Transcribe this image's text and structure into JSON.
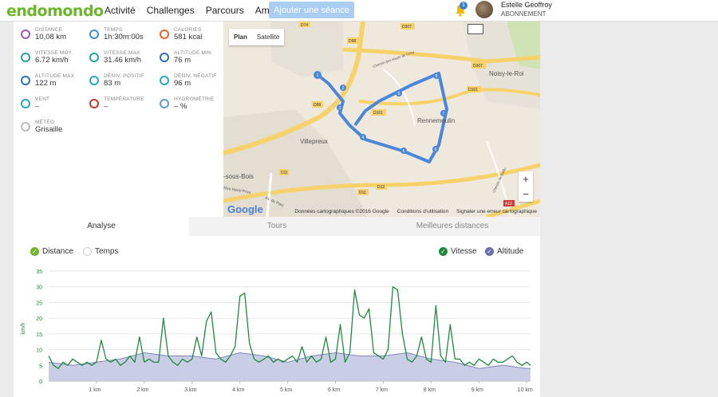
{
  "header": {
    "logo": "endomondo",
    "nav": [
      "Activité",
      "Challenges",
      "Parcours",
      "Amis"
    ],
    "add_button": "Ajouter une séance",
    "notifications": "1",
    "user_name": "Estelle Geoffroy",
    "user_sub": "ABONNEMENT"
  },
  "stats": [
    {
      "label": "Distance",
      "value": "10,08 km",
      "icon": "pin-icon",
      "color": "#9b59b6"
    },
    {
      "label": "Temps",
      "value": "1h:30m:00s",
      "icon": "stopwatch-icon",
      "color": "#3b8fd4"
    },
    {
      "label": "Calories",
      "value": "581 kcal",
      "icon": "flame-icon",
      "color": "#e8642c"
    },
    {
      "label": "Vitesse moy.",
      "value": "6.72 km/h",
      "icon": "gauge-icon",
      "color": "#2aa198"
    },
    {
      "label": "Vitesse max",
      "value": "31.46 km/h",
      "icon": "gauge-icon",
      "color": "#2aa198"
    },
    {
      "label": "Altitude min",
      "value": "76 m",
      "icon": "mountain-icon",
      "color": "#2f6fb8"
    },
    {
      "label": "Altitude max",
      "value": "122 m",
      "icon": "mountain-icon",
      "color": "#2f6fb8"
    },
    {
      "label": "Déniv. positif",
      "value": "83 m",
      "icon": "ascent-icon",
      "color": "#27a8c6"
    },
    {
      "label": "Déniv. négatif",
      "value": "96 m",
      "icon": "descent-icon",
      "color": "#27a8c6"
    },
    {
      "label": "Vent",
      "value": "–",
      "icon": "wind-icon",
      "color": "#27a8c6"
    },
    {
      "label": "Température",
      "value": "–",
      "icon": "thermometer-icon",
      "color": "#c0392b"
    },
    {
      "label": "Hygrométrie",
      "value": "– %",
      "icon": "droplets-icon",
      "color": "#5b9bd5"
    },
    {
      "label": "Météo",
      "value": "Grisaille",
      "icon": "cloud-icon",
      "color": "#bbbbbb"
    }
  ],
  "map": {
    "plan": "Plan",
    "satellite": "Satellite",
    "places": [
      "Villepreux",
      "Rennemoulin",
      "Noisy-le-Roi",
      "-sous-Bois",
      "Chemin des Hauts de Grisy",
      "Chemin de Bailly",
      "Rue Henri Prou",
      "Av. du Parc"
    ],
    "roads": [
      "D98",
      "D307",
      "D161",
      "D11",
      "D12",
      "D74",
      "A12",
      "D307",
      "D161",
      "D98",
      "D11"
    ],
    "attribution": [
      "Données cartographiques ©2016 Google",
      "Conditions d'utilisation",
      "Signaler une erreur cartographique"
    ],
    "google": "Google",
    "zoom_in": "+",
    "zoom_out": "−",
    "markers": [
      "1",
      "2",
      "3",
      "4",
      "5",
      "6",
      "7",
      "8",
      "9"
    ]
  },
  "tabs": [
    "Analyse",
    "Tours",
    "Meilleures distances"
  ],
  "legend": {
    "distance": "Distance",
    "temps": "Temps",
    "vitesse": "Vitesse",
    "altitude": "Altitude",
    "check": "✓"
  },
  "colors": {
    "speed": "#1e8a3c",
    "altitude_fill": "#c9cde6",
    "altitude_line": "#7d86bd",
    "route": "#4a86d9",
    "accent": "#6cb52d"
  },
  "chart_data": {
    "type": "line",
    "ylabel": "km/h",
    "ylim": [
      0,
      35
    ],
    "yticks": [
      0,
      5,
      10,
      15,
      20,
      25,
      30,
      35
    ],
    "xlim": [
      0,
      10.08
    ],
    "xticks": [
      "1 km",
      "2 km",
      "3 km",
      "4 km",
      "5 km",
      "6 km",
      "7 km",
      "8 km",
      "9 km",
      "10 km"
    ],
    "xtick_values": [
      1,
      2,
      3,
      4,
      5,
      6,
      7,
      8,
      9,
      10
    ],
    "series": [
      {
        "name": "Vitesse",
        "x": [
          0,
          0.1,
          0.2,
          0.3,
          0.4,
          0.5,
          0.6,
          0.7,
          0.8,
          0.9,
          1.0,
          1.1,
          1.2,
          1.3,
          1.4,
          1.5,
          1.6,
          1.7,
          1.8,
          1.9,
          2.0,
          2.1,
          2.2,
          2.3,
          2.4,
          2.5,
          2.6,
          2.7,
          2.8,
          2.9,
          3.0,
          3.1,
          3.2,
          3.3,
          3.4,
          3.5,
          3.6,
          3.7,
          3.8,
          3.9,
          4.0,
          4.1,
          4.2,
          4.3,
          4.4,
          4.5,
          4.6,
          4.7,
          4.8,
          4.9,
          5.0,
          5.1,
          5.2,
          5.3,
          5.4,
          5.5,
          5.6,
          5.7,
          5.8,
          5.9,
          6.0,
          6.1,
          6.2,
          6.3,
          6.4,
          6.5,
          6.6,
          6.7,
          6.8,
          6.9,
          7.0,
          7.1,
          7.2,
          7.3,
          7.4,
          7.5,
          7.6,
          7.7,
          7.8,
          7.9,
          8.0,
          8.1,
          8.2,
          8.3,
          8.4,
          8.5,
          8.6,
          8.7,
          8.8,
          8.9,
          9.0,
          9.1,
          9.2,
          9.3,
          9.4,
          9.5,
          9.6,
          9.7,
          9.8,
          9.9,
          10.0,
          10.08
        ],
        "values": [
          8,
          5,
          4,
          6,
          5,
          7,
          6,
          5,
          6,
          5,
          6,
          13,
          7,
          6,
          7,
          5,
          6,
          8,
          6,
          14,
          6,
          7,
          6,
          6,
          20,
          8,
          6,
          5,
          7,
          6,
          7,
          14,
          8,
          19,
          22,
          9,
          7,
          6,
          8,
          11,
          27,
          28,
          12,
          7,
          6,
          7,
          8,
          6,
          7,
          6,
          7,
          8,
          6,
          11,
          6,
          8,
          6,
          7,
          14,
          6,
          7,
          18,
          6,
          9,
          29,
          21,
          20,
          23,
          9,
          8,
          7,
          10,
          30,
          29,
          15,
          7,
          6,
          8,
          14,
          7,
          6,
          24,
          8,
          6,
          18,
          7,
          7,
          5,
          6,
          5,
          7,
          6,
          5,
          7,
          6,
          6,
          7,
          8,
          6,
          5,
          6,
          5
        ]
      },
      {
        "name": "Altitude",
        "x": [
          0,
          0.5,
          1.0,
          1.5,
          2.0,
          2.5,
          3.0,
          3.5,
          4.0,
          4.5,
          5.0,
          5.5,
          6.0,
          6.5,
          7.0,
          7.5,
          8.0,
          8.5,
          9.0,
          9.5,
          10.0,
          10.08
        ],
        "values": [
          6,
          5,
          6,
          7,
          9,
          8,
          8,
          7,
          9,
          8,
          6,
          8,
          9,
          8,
          8,
          9,
          7,
          6,
          4,
          5,
          4,
          4
        ]
      }
    ]
  }
}
